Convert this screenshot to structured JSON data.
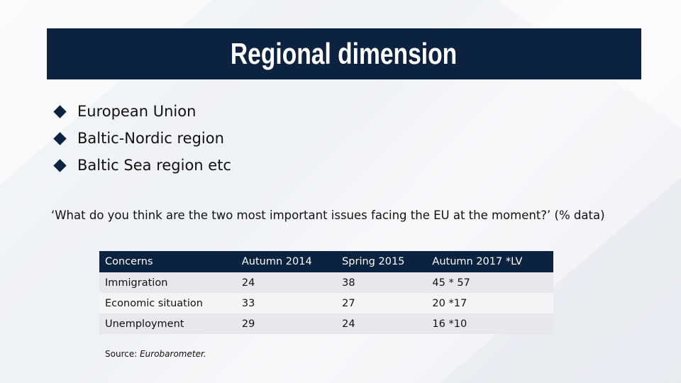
{
  "header": {
    "title": "Regional dimension"
  },
  "bullets": [
    "European Union",
    "Baltic-Nordic region",
    "Baltic Sea region etc"
  ],
  "question": "‘What do you think are the two most important issues facing the EU at the moment?’ (% data)",
  "table": {
    "columns": [
      "Concerns",
      "Autumn 2014",
      "Spring 2015",
      "Autumn 2017 *LV"
    ],
    "rows": [
      [
        "Immigration",
        24,
        38,
        "45  * 57"
      ],
      [
        "Economic situation",
        33,
        27,
        "20  *17"
      ],
      [
        "Unemployment",
        29,
        24,
        "16  *10"
      ]
    ]
  },
  "source": {
    "label": "Source: ",
    "name": "Eurobarometer."
  }
}
